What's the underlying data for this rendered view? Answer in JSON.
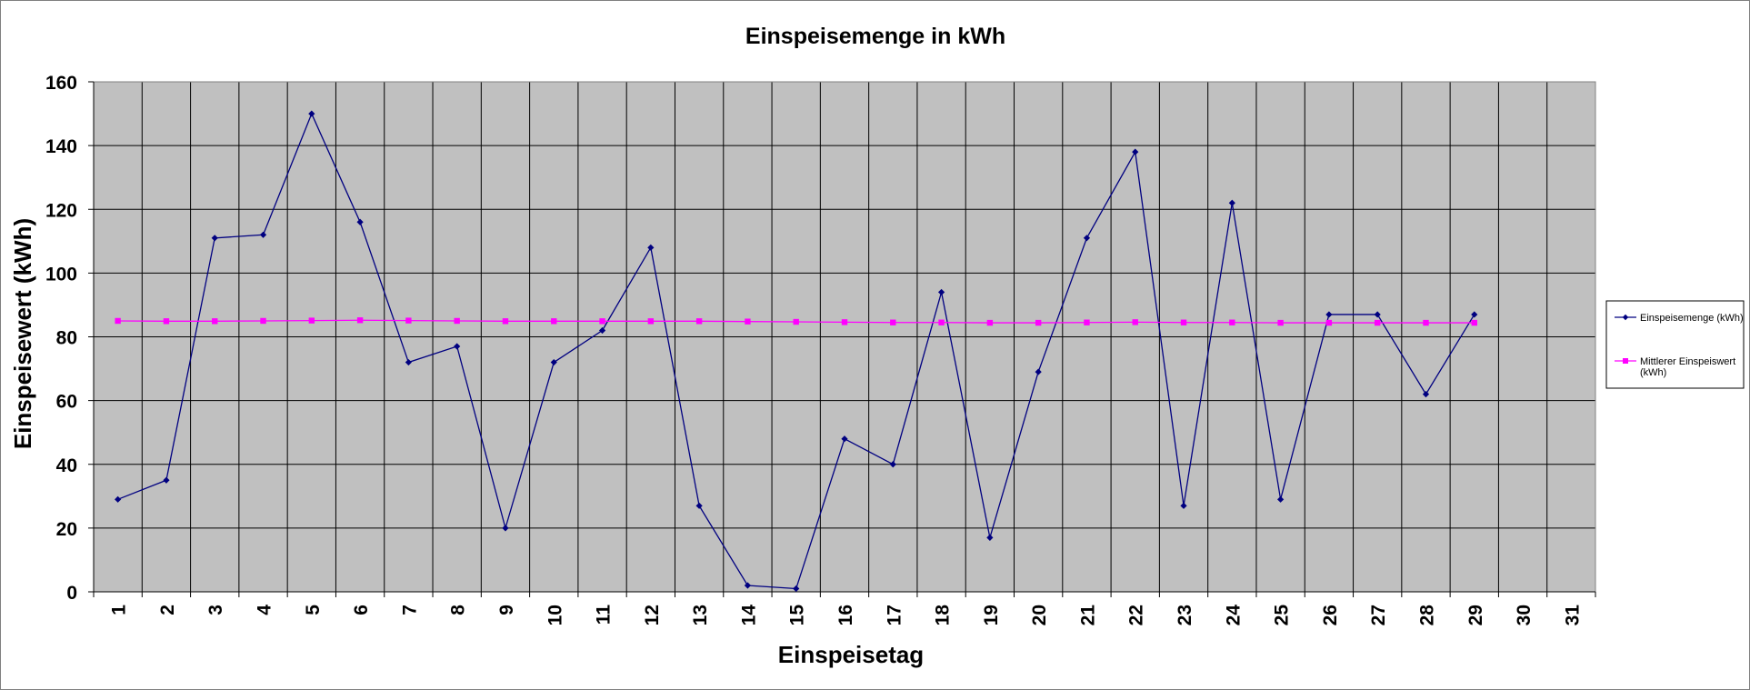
{
  "chart_data": {
    "type": "line",
    "title": "Einspeisemenge in kWh",
    "xlabel": "Einspeisetag",
    "ylabel": "Einspeisewert  (kWh)",
    "categories": [
      "1",
      "2",
      "3",
      "4",
      "5",
      "6",
      "7",
      "8",
      "9",
      "10",
      "11",
      "12",
      "13",
      "14",
      "15",
      "16",
      "17",
      "18",
      "19",
      "20",
      "21",
      "22",
      "23",
      "24",
      "25",
      "26",
      "27",
      "28",
      "29",
      "30",
      "31"
    ],
    "ylim": [
      0,
      160
    ],
    "yticks": [
      0,
      20,
      40,
      60,
      80,
      100,
      120,
      140,
      160
    ],
    "grid": true,
    "legend_position": "right",
    "series": [
      {
        "name": "Einspeisemenge (kWh)",
        "color": "#000080",
        "marker": "diamond",
        "values": [
          29,
          35,
          111,
          112,
          150,
          116,
          72,
          77,
          20,
          72,
          82,
          108,
          27,
          2,
          1,
          48,
          40,
          94,
          17,
          69,
          111,
          138,
          27,
          122,
          29,
          87,
          87,
          62,
          87,
          null,
          null
        ]
      },
      {
        "name": "Mittlerer Einspeiswert (kWh)",
        "legend_lines": [
          "Mittlerer Einspeiswert",
          "(kWh)"
        ],
        "color": "#ff00ff",
        "marker": "square",
        "values": [
          85.0,
          84.9,
          84.9,
          85.0,
          85.1,
          85.2,
          85.1,
          85.0,
          84.9,
          84.9,
          84.9,
          84.9,
          84.9,
          84.8,
          84.7,
          84.6,
          84.5,
          84.5,
          84.4,
          84.4,
          84.5,
          84.6,
          84.5,
          84.5,
          84.4,
          84.4,
          84.4,
          84.4,
          84.4,
          null,
          null
        ]
      }
    ]
  },
  "colors": {
    "plot_background": "#c0c0c0",
    "gridline": "#000000"
  }
}
